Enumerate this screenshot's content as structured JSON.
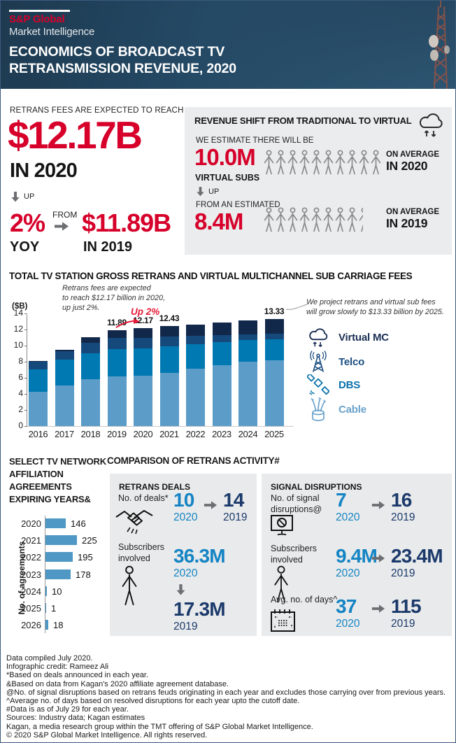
{
  "header": {
    "brand_top": "S&P Global",
    "brand_bottom": "Market Intelligence",
    "title": "ECONOMICS OF BROADCAST TV\nRETRANSMISSION REVENUE, 2020"
  },
  "top_stat": {
    "kicker": "RETRANS FEES ARE EXPECTED TO REACH",
    "big_value": "$12.17B",
    "big_year": "IN 2020",
    "up_label": "UP",
    "pct": "2%",
    "pct_sub": "YOY",
    "from_label": "FROM",
    "prev_value": "$11.89B",
    "prev_year": "IN 2019"
  },
  "revenue_shift": {
    "title": "REVENUE SHIFT FROM TRADITIONAL TO VIRTUAL",
    "estimate_label": "WE ESTIMATE THERE WILL BE",
    "value_2020": "10.0M",
    "value_2020_sub": "VIRTUAL SUBS",
    "icons_2020": 10,
    "avg_2020_line1": "ON AVERAGE",
    "avg_2020_line2": "IN 2020",
    "up_label": "UP",
    "from_label": "FROM AN ESTIMATED",
    "value_2019": "8.4M",
    "icons_2019": 8.4,
    "avg_2019_line1": "ON AVERAGE",
    "avg_2019_line2": "IN 2019"
  },
  "chart_data": [
    {
      "type": "bar",
      "stacked": true,
      "title": "TOTAL TV STATION GROSS RETRANS AND VIRTUAL MULTICHANNEL SUB CARRIAGE FEES",
      "ylabel": "($B)",
      "ylim": [
        0,
        14
      ],
      "yticks": [
        0,
        2,
        4,
        6,
        8,
        10,
        12,
        14
      ],
      "grid": false,
      "legend_position": "right",
      "categories": [
        "2016",
        "2017",
        "2018",
        "2019",
        "2020",
        "2021",
        "2022",
        "2023",
        "2024",
        "2025"
      ],
      "series": [
        {
          "name": "Cable",
          "color": "#5b9cc8",
          "values": [
            4.3,
            5.05,
            5.85,
            6.2,
            6.3,
            6.6,
            7.1,
            7.55,
            8.0,
            8.2
          ]
        },
        {
          "name": "DBS",
          "color": "#0079b2",
          "values": [
            2.75,
            3.2,
            3.2,
            3.35,
            3.4,
            3.3,
            3.05,
            2.9,
            2.7,
            2.6
          ]
        },
        {
          "name": "Telco",
          "color": "#15497c",
          "values": [
            1.0,
            1.1,
            1.3,
            1.4,
            1.3,
            1.2,
            1.1,
            0.9,
            0.7,
            0.65
          ]
        },
        {
          "name": "Virtual MC",
          "color": "#12284a",
          "values": [
            0.05,
            0.15,
            0.7,
            0.94,
            1.17,
            1.33,
            1.4,
            1.55,
            1.75,
            1.88
          ]
        }
      ],
      "bar_labels": {
        "2019": "11.89",
        "2020": "12.17",
        "2021": "12.43",
        "2025": "13.33"
      },
      "annotation_left": "Retrans fees are expected\nto reach $12.17 billion in 2020,\nup just 2%.",
      "annotation_up": "Up 2%",
      "annotation_right": "We project retrans and virtual sub fees\nwill grow slowly to $13.33 billion by 2025.",
      "legend": [
        "Virtual MC",
        "Telco",
        "DBS",
        "Cable"
      ]
    },
    {
      "type": "bar",
      "orientation": "horizontal",
      "title": "SELECT TV NETWORK\nAFFILIATION\nAGREEMENTS\nEXPIRING YEARS&",
      "ylabel": "No. of agreements",
      "bar_color": "#4f97c4",
      "categories": [
        "2020",
        "2021",
        "2022",
        "2023",
        "2024",
        "2025",
        "2026"
      ],
      "values": [
        146,
        225,
        195,
        178,
        10,
        1,
        18
      ]
    }
  ],
  "comparison": {
    "title": "COMPARISON OF RETRANS ACTIVITY#",
    "deals": {
      "title": "RETRANS DEALS",
      "rows": [
        {
          "label": "No. of deals*",
          "icon": "handshake-icon",
          "v2020": "10",
          "y2020": "2020",
          "v2019": "14",
          "y2019": "2019"
        },
        {
          "label": "Subscribers\ninvolved",
          "icon": "person-icon",
          "v2020": "36.3M",
          "y2020": "2020",
          "v2019": "17.3M",
          "y2019": "2019"
        }
      ]
    },
    "signal": {
      "title": "SIGNAL DISRUPTIONS",
      "rows": [
        {
          "label": "No. of signal\ndisruptions@",
          "icon": "monitor-block-icon",
          "v2020": "7",
          "y2020": "2020",
          "v2019": "16",
          "y2019": "2019"
        },
        {
          "label": "Subscribers\ninvolved",
          "icon": "person-icon",
          "v2020": "9.4M",
          "y2020": "2020",
          "v2019": "23.4M",
          "y2019": "2019"
        },
        {
          "label": "Avg. no. of days^",
          "icon": "calendar-icon",
          "v2020": "37",
          "y2020": "2020",
          "v2019": "115",
          "y2019": "2019"
        }
      ]
    }
  },
  "footer": {
    "lines": [
      "Data compiled July 2020.",
      "Infographic credit: Rameez Ali",
      "*Based on deals announced in each year.",
      "&Based on data from Kagan's 2020 affiliate agreement database.",
      "@No. of signal disruptions based on retrans feuds originating in each year and excludes those carrying over from previous years.",
      "^Average no. of days based on resolved disruptions for each year upto the cutoff date.",
      "#Data is as of July 29 for each year.",
      "Sources: Industry data; Kagan estimates",
      "Kagan, a media research group within the TMT offering of S&P Global Market Intelligence.",
      "© 2020 S&P Global Market Intelligence. All rights reserved."
    ]
  },
  "colors": {
    "accent_red": "#d6002a",
    "num_blue_2020": "#1484c4",
    "num_navy_2019": "#1b3a6b",
    "arrow_gray": "#6d6e71",
    "panel_gray": "#ebeced",
    "header_navy": "#223f57"
  }
}
